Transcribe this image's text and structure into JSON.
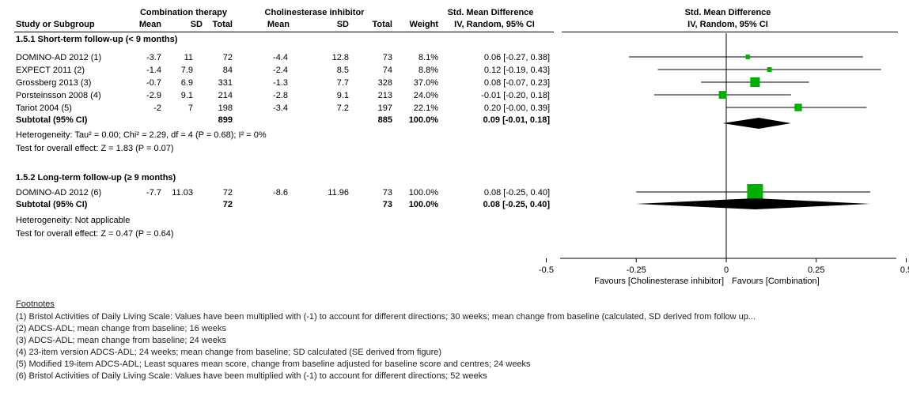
{
  "header": {
    "group1": "Combination therapy",
    "group2": "Cholinesterase inhibitor",
    "effect_left": "Std. Mean Difference",
    "effect_right": "Std. Mean Difference",
    "study_col": "Study or Subgroup",
    "mean1": "Mean",
    "sd1": "SD",
    "total1": "Total",
    "mean2": "Mean",
    "sd2": "SD",
    "total2": "Total",
    "weight": "Weight",
    "method_left": "IV, Random, 95% CI",
    "method_right": "IV, Random, 95% CI"
  },
  "chart_data": {
    "type": "forest",
    "x_axis": {
      "ticks": [
        -0.5,
        -0.25,
        0,
        0.25,
        0.5
      ],
      "tick_labels": [
        "-0.5",
        "-0.25",
        "0",
        "0.25",
        "0.5"
      ],
      "favours_left": "Favours [Cholinesterase inhibitor]",
      "favours_right": "Favours [Combination]"
    },
    "subgroups": [
      {
        "title": "1.5.1 Short-term follow-up (< 9 months)",
        "studies": [
          {
            "name": "DOMINO-AD 2012 (1)",
            "mean1": "-3.7",
            "sd1": "11",
            "total1": "72",
            "mean2": "-4.4",
            "sd2": "12.8",
            "total2": "73",
            "weight": "8.1%",
            "ci_text": "0.06 [-0.27, 0.38]",
            "est": 0.06,
            "lo": -0.27,
            "hi": 0.38,
            "w": 8.1
          },
          {
            "name": "EXPECT 2011 (2)",
            "mean1": "-1.4",
            "sd1": "7.9",
            "total1": "84",
            "mean2": "-2.4",
            "sd2": "8.5",
            "total2": "74",
            "weight": "8.8%",
            "ci_text": "0.12 [-0.19, 0.43]",
            "est": 0.12,
            "lo": -0.19,
            "hi": 0.43,
            "w": 8.8
          },
          {
            "name": "Grossberg 2013 (3)",
            "mean1": "-0.7",
            "sd1": "6.9",
            "total1": "331",
            "mean2": "-1.3",
            "sd2": "7.7",
            "total2": "328",
            "weight": "37.0%",
            "ci_text": "0.08 [-0.07, 0.23]",
            "est": 0.08,
            "lo": -0.07,
            "hi": 0.23,
            "w": 37.0
          },
          {
            "name": "Porsteinsson 2008 (4)",
            "mean1": "-2.9",
            "sd1": "9.1",
            "total1": "214",
            "mean2": "-2.8",
            "sd2": "9.1",
            "total2": "213",
            "weight": "24.0%",
            "ci_text": "-0.01 [-0.20, 0.18]",
            "est": -0.01,
            "lo": -0.2,
            "hi": 0.18,
            "w": 24.0
          },
          {
            "name": "Tariot 2004 (5)",
            "mean1": "-2",
            "sd1": "7",
            "total1": "198",
            "mean2": "-3.4",
            "sd2": "7.2",
            "total2": "197",
            "weight": "22.1%",
            "ci_text": "0.20 [-0.00, 0.39]",
            "est": 0.2,
            "lo": -0.0,
            "hi": 0.39,
            "w": 22.1
          }
        ],
        "subtotal": {
          "label": "Subtotal (95% CI)",
          "total1": "899",
          "total2": "885",
          "weight": "100.0%",
          "ci_text": "0.09 [-0.01, 0.18]",
          "est": 0.09,
          "lo": -0.01,
          "hi": 0.18
        },
        "heterogeneity": "Heterogeneity: Tau² = 0.00; Chi² = 2.29, df = 4 (P = 0.68); I² = 0%",
        "overall": "Test for overall effect: Z = 1.83 (P = 0.07)"
      },
      {
        "title": "1.5.2 Long-term follow-up (≥ 9 months)",
        "studies": [
          {
            "name": "DOMINO-AD 2012 (6)",
            "mean1": "-7.7",
            "sd1": "11.03",
            "total1": "72",
            "mean2": "-8.6",
            "sd2": "11.96",
            "total2": "73",
            "weight": "100.0%",
            "ci_text": "0.08 [-0.25, 0.40]",
            "est": 0.08,
            "lo": -0.25,
            "hi": 0.4,
            "w": 100.0
          }
        ],
        "subtotal": {
          "label": "Subtotal (95% CI)",
          "total1": "72",
          "total2": "73",
          "weight": "100.0%",
          "ci_text": "0.08 [-0.25, 0.40]",
          "est": 0.08,
          "lo": -0.25,
          "hi": 0.4
        },
        "heterogeneity": "Heterogeneity: Not applicable",
        "overall": "Test for overall effect: Z = 0.47 (P = 0.64)"
      }
    ]
  },
  "footnotes": {
    "title": "Footnotes",
    "lines": [
      "(1) Bristol Activities of Daily Living Scale: Values have been multiplied with (-1) to account for different directions; 30 weeks; mean change from baseline (calculated, SD derived from follow up...",
      "(2) ADCS-ADL; mean change from baseline; 16 weeks",
      "(3) ADCS-ADL; mean change from baseline; 24 weeks",
      "(4) 23-item version ADCS-ADL; 24 weeks; mean change from baseline; SD calculated (SE derived from figure)",
      "(5) Modified 19-item ADCS-ADL; Least squares mean score, change from baseline adjusted for baseline score and centres; 24 weeks",
      "(6) Bristol Activities of Daily Living Scale: Values have been multiplied with (-1) to account for different directions; 52 weeks"
    ]
  },
  "colors": {
    "marker": "#00b000",
    "diamond": "#000000",
    "line": "#000000"
  }
}
